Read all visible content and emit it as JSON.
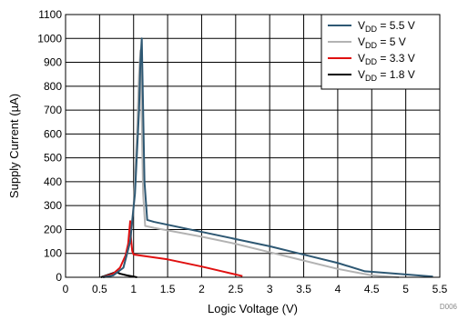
{
  "chart_data": {
    "type": "line",
    "xlabel": "Logic Voltage (V)",
    "ylabel": "Supply Current (µA)",
    "xlim": [
      0,
      5.5
    ],
    "ylim": [
      0,
      1100
    ],
    "x_ticks": [
      "0",
      "0.5",
      "1",
      "1.5",
      "2",
      "2.5",
      "3",
      "3.5",
      "4",
      "4.5",
      "5",
      "5.5"
    ],
    "y_ticks": [
      "0",
      "100",
      "200",
      "300",
      "400",
      "500",
      "600",
      "700",
      "800",
      "900",
      "1000",
      "1100"
    ],
    "grid": true,
    "legend_position": "top-right",
    "corner_code": "D006",
    "series": [
      {
        "name": "VDD = 5.5 V",
        "label_main": "V",
        "label_sub": "DD",
        "label_rest": " = 5.5 V",
        "color": "#2e5873",
        "points": [
          [
            0.55,
            0
          ],
          [
            0.7,
            8
          ],
          [
            0.85,
            40
          ],
          [
            0.95,
            150
          ],
          [
            1.02,
            350
          ],
          [
            1.08,
            700
          ],
          [
            1.1,
            900
          ],
          [
            1.12,
            1000
          ],
          [
            1.14,
            700
          ],
          [
            1.16,
            400
          ],
          [
            1.2,
            240
          ],
          [
            1.3,
            232
          ],
          [
            2,
            190
          ],
          [
            2.5,
            160
          ],
          [
            3,
            130
          ],
          [
            3.5,
            95
          ],
          [
            4,
            60
          ],
          [
            4.4,
            25
          ],
          [
            5,
            12
          ],
          [
            5.4,
            3
          ]
        ]
      },
      {
        "name": "VDD = 5 V",
        "label_main": "V",
        "label_sub": "DD",
        "label_rest": " = 5 V",
        "color": "#b3b3b3",
        "points": [
          [
            0.55,
            0
          ],
          [
            0.7,
            8
          ],
          [
            0.85,
            40
          ],
          [
            0.95,
            150
          ],
          [
            1.0,
            300
          ],
          [
            1.05,
            600
          ],
          [
            1.08,
            850
          ],
          [
            1.1,
            950
          ],
          [
            1.12,
            650
          ],
          [
            1.14,
            350
          ],
          [
            1.17,
            215
          ],
          [
            1.3,
            207
          ],
          [
            2,
            170
          ],
          [
            2.5,
            140
          ],
          [
            3,
            105
          ],
          [
            3.5,
            70
          ],
          [
            4,
            35
          ],
          [
            4.5,
            8
          ],
          [
            4.9,
            0
          ]
        ]
      },
      {
        "name": "VDD = 3.3 V",
        "label_main": "V",
        "label_sub": "DD",
        "label_rest": " = 3.3 V",
        "color": "#e01010",
        "points": [
          [
            0.55,
            0
          ],
          [
            0.7,
            15
          ],
          [
            0.8,
            40
          ],
          [
            0.88,
            90
          ],
          [
            0.92,
            140
          ],
          [
            0.95,
            235
          ],
          [
            0.96,
            170
          ],
          [
            0.98,
            110
          ],
          [
            1.0,
            95
          ],
          [
            1.5,
            75
          ],
          [
            2,
            45
          ],
          [
            2.3,
            25
          ],
          [
            2.6,
            5
          ]
        ]
      },
      {
        "name": "VDD = 1.8 V",
        "label_main": "V",
        "label_sub": "DD",
        "label_rest": " = 1.8 V",
        "color": "#000000",
        "points": [
          [
            0.52,
            0
          ],
          [
            0.6,
            8
          ],
          [
            0.7,
            18
          ],
          [
            0.75,
            22
          ],
          [
            0.8,
            15
          ],
          [
            0.9,
            8
          ],
          [
            1.0,
            3
          ],
          [
            1.05,
            0
          ]
        ]
      }
    ]
  }
}
